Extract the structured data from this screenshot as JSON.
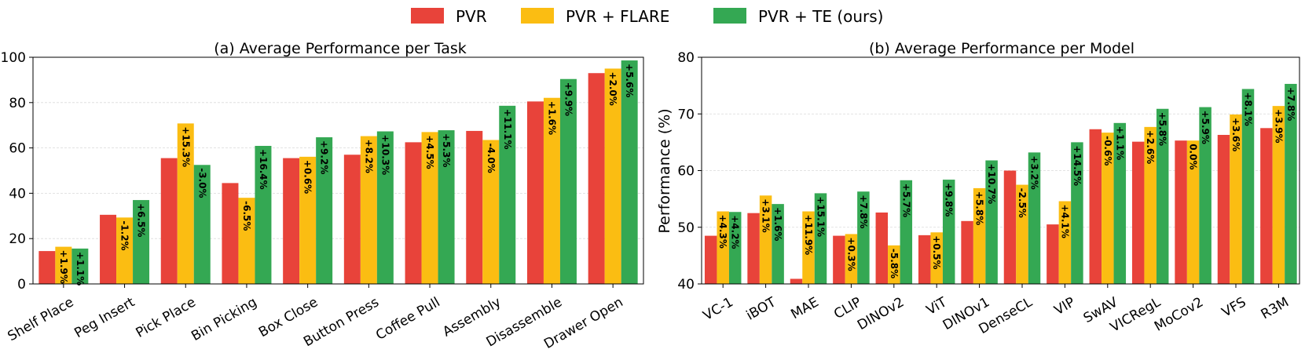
{
  "legend": {
    "entries": [
      {
        "label": "PVR",
        "color": "#e8433a"
      },
      {
        "label": "PVR + FLARE",
        "color": "#fbbd12"
      },
      {
        "label": "PVR + TE (ours)",
        "color": "#34a853"
      }
    ]
  },
  "chart_data": [
    {
      "type": "bar",
      "title": "(a) Average Performance per Task",
      "xlabel": "",
      "ylabel": "",
      "ylim": [
        0,
        100
      ],
      "yticks": [
        "0",
        "20",
        "40",
        "60",
        "80",
        "100"
      ],
      "grid": true,
      "categories": [
        "Shelf Place",
        "Peg Insert",
        "Pick Place",
        "Bin Picking",
        "Box Close",
        "Button Press",
        "Coffee Pull",
        "Assembly",
        "Disassemble",
        "Drawer Open"
      ],
      "series": [
        {
          "name": "PVR",
          "color": "#e8433a",
          "values": [
            14.5,
            30.5,
            55.5,
            44.5,
            55.5,
            57,
            62.5,
            67.5,
            80.5,
            93
          ],
          "labels": [
            "",
            "",
            "",
            "",
            "",
            "",
            "",
            "",
            "",
            ""
          ]
        },
        {
          "name": "PVR + FLARE",
          "color": "#fbbd12",
          "values": [
            16.4,
            29.3,
            70.8,
            38,
            56.1,
            65.2,
            67,
            63.5,
            82.1,
            95
          ],
          "labels": [
            "+1.9%",
            "-1.2%",
            "+15.3%",
            "-6.5%",
            "+0.6%",
            "+8.2%",
            "+4.5%",
            "-4.0%",
            "+1.6%",
            "+2.0%"
          ]
        },
        {
          "name": "PVR + TE (ours)",
          "color": "#34a853",
          "values": [
            15.6,
            37,
            52.5,
            60.9,
            64.7,
            67.3,
            67.8,
            78.6,
            90.4,
            98.6
          ],
          "labels": [
            "+1.1%",
            "+6.5%",
            "-3.0%",
            "+16.4%",
            "+9.2%",
            "+10.3%",
            "+5.3%",
            "+11.1%",
            "+9.9%",
            "+5.6%"
          ]
        }
      ]
    },
    {
      "type": "bar",
      "title": "(b) Average Performance per Model",
      "xlabel": "",
      "ylabel": "Performance (%)",
      "ylim": [
        40,
        80
      ],
      "yticks": [
        "40",
        "50",
        "60",
        "70",
        "80"
      ],
      "grid": true,
      "categories": [
        "VC-1",
        "iBOT",
        "MAE",
        "CLIP",
        "DINOv2",
        "ViT",
        "DINOv1",
        "DenseCL",
        "VIP",
        "SwAV",
        "VICRegL",
        "MoCov2",
        "VFS",
        "R3M"
      ],
      "series": [
        {
          "name": "PVR",
          "color": "#e8433a",
          "values": [
            48.5,
            52.5,
            40.9,
            48.5,
            52.6,
            48.6,
            51.1,
            60,
            50.5,
            67.3,
            65.1,
            65.3,
            66.3,
            67.5
          ],
          "labels": [
            "",
            "",
            "",
            "",
            "",
            "",
            "",
            "",
            "",
            "",
            "",
            "",
            "",
            ""
          ]
        },
        {
          "name": "PVR + FLARE",
          "color": "#fbbd12",
          "values": [
            52.8,
            55.6,
            52.8,
            48.8,
            46.8,
            49.1,
            56.9,
            57.5,
            54.6,
            66.7,
            67.7,
            65.3,
            69.9,
            71.4
          ],
          "labels": [
            "+4.3%",
            "+3.1%",
            "+11.9%",
            "+0.3%",
            "-5.8%",
            "+0.5%",
            "+5.8%",
            "-2.5%",
            "+4.1%",
            "-0.6%",
            "+2.6%",
            "0.0%",
            "+3.6%",
            "+3.9%"
          ]
        },
        {
          "name": "PVR + TE (ours)",
          "color": "#34a853",
          "values": [
            52.7,
            54.1,
            56,
            56.3,
            58.3,
            58.4,
            61.8,
            63.2,
            65,
            68.4,
            70.9,
            71.2,
            74.4,
            75.3
          ],
          "labels": [
            "+4.2%",
            "+1.6%",
            "+15.1%",
            "+7.8%",
            "+5.7%",
            "+9.8%",
            "+10.7%",
            "+3.2%",
            "+14.5%",
            "+1.1%",
            "+5.8%",
            "+5.9%",
            "+8.1%",
            "+7.8%"
          ]
        }
      ]
    }
  ]
}
